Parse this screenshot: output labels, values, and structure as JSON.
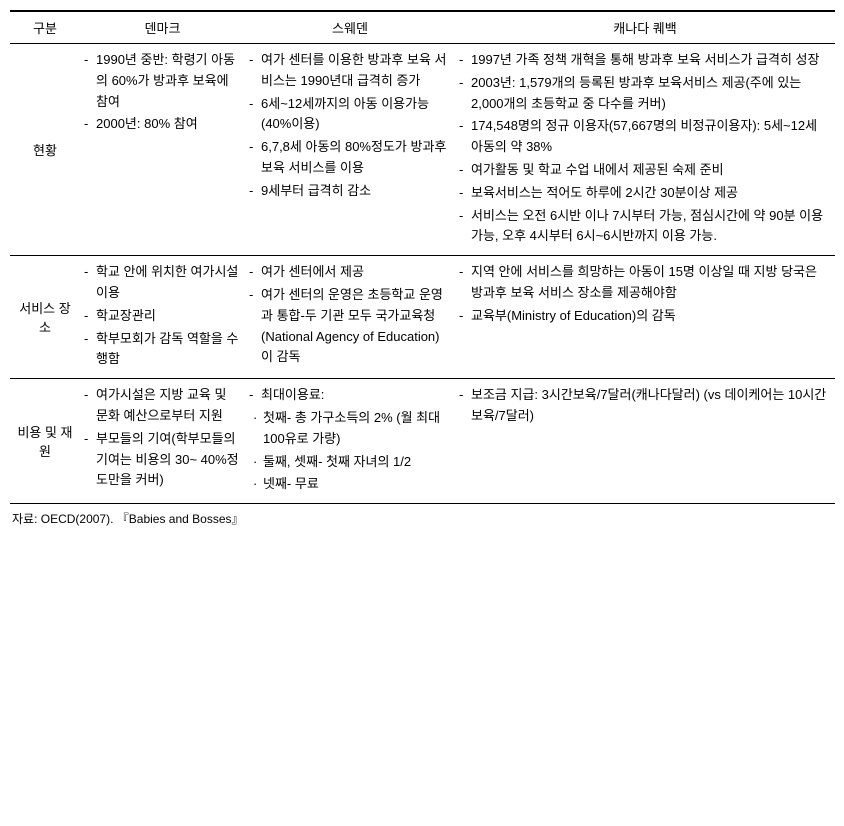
{
  "table": {
    "columns": [
      "구분",
      "덴마크",
      "스웨덴",
      "캐나다 퀘백"
    ],
    "rows": [
      {
        "label": "현황",
        "denmark": {
          "items": [
            "1990년 중반: 학령기 아동의 60%가 방과후 보육에 참여",
            "2000년: 80% 참여"
          ]
        },
        "sweden": {
          "items": [
            "여가 센터를 이용한 방과후  보육 서비스는 1990년대 급격히 증가",
            "6세~12세까지의 아동 이용가능(40%이용)",
            "6,7,8세 아동의 80%정도가 방과후 보육 서비스를 이용",
            "9세부터 급격히 감소"
          ]
        },
        "canada": {
          "items": [
            "1997년 가족 정책 개혁을 통해 방과후 보육 서비스가 급격히 성장",
            "2003년: 1,579개의 등록된 방과후 보육서비스 제공(주에 있는 2,000개의 초등학교 중 다수를 커버)",
            "174,548명의 정규 이용자(57,667명의 비정규이용자): 5세~12세 아동의 약 38%",
            "여가활동 및 학교 수업 내에서 제공된 숙제 준비",
            "보육서비스는 적어도 하루에 2시간 30분이상 제공",
            "서비스는 오전 6시반 이나 7시부터 가능, 점심시간에 약 90분 이용 가능, 오후 4시부터 6시~6시반까지 이용 가능."
          ]
        }
      },
      {
        "label": "서비스 장소",
        "denmark": {
          "items": [
            "학교 안에 위치한 여가시설 이용",
            "학교장관리",
            "학부모회가 감독 역할을 수행함"
          ]
        },
        "sweden": {
          "items": [
            "여가 센터에서 제공",
            "여가 센터의 운영은 초등학교 운영과 통합-두 기관 모두 국가교육청(National Agency of Education)이 감독"
          ]
        },
        "canada": {
          "items": [
            "지역 안에 서비스를 희망하는 아동이 15명 이상일 때 지방 당국은 방과후 보육 서비스 장소를 제공해야함",
            "교육부(Ministry of Education)의 감독"
          ]
        }
      },
      {
        "label": "비용 및 재원",
        "denmark": {
          "items": [
            "여가시설은 지방 교육 및 문화 예산으로부터 지원",
            "부모들의 기여(학부모들의 기여는 비용의 30~ 40%정도만을 커버)"
          ]
        },
        "sweden": {
          "items": [
            "최대이용료:"
          ],
          "subitems": [
            "첫째- 총 가구소득의 2% (월 최대 100유로 가량)",
            "둘째, 셋째- 첫째 자녀의 1/2",
            "넷째- 무료"
          ]
        },
        "canada": {
          "items": [
            "보조금 지급: 3시간보육/7달러(캐나다달러) (vs 데이케어는 10시간보육/7달러)"
          ]
        }
      }
    ]
  },
  "source": "자료: OECD(2007). 『Babies and Bosses』"
}
